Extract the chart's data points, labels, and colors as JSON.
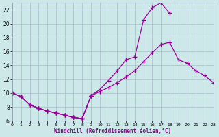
{
  "bg_color": "#cce8e8",
  "grid_color": "#aabbcc",
  "line_color": "#990099",
  "xlabel": "Windchill (Refroidissement éolien,°C)",
  "xlim": [
    0,
    23
  ],
  "ylim": [
    6,
    23
  ],
  "xticks": [
    0,
    1,
    2,
    3,
    4,
    5,
    6,
    7,
    8,
    9,
    10,
    11,
    12,
    13,
    14,
    15,
    16,
    17,
    18,
    19,
    20,
    21,
    22,
    23
  ],
  "yticks": [
    6,
    8,
    10,
    12,
    14,
    16,
    18,
    20,
    22
  ],
  "line1_x": [
    0,
    1,
    2,
    3,
    4,
    5,
    6,
    7,
    8,
    9
  ],
  "line1_y": [
    10.0,
    9.5,
    8.3,
    7.8,
    7.4,
    7.1,
    6.8,
    6.5,
    6.3,
    9.6
  ],
  "line2_x": [
    0,
    1,
    2,
    3,
    4,
    5,
    6,
    7,
    8,
    9,
    10,
    11,
    12,
    13,
    14,
    15,
    16,
    17,
    18,
    19,
    20,
    21,
    22,
    23
  ],
  "line2_y": [
    10.0,
    9.5,
    8.3,
    7.8,
    7.4,
    7.1,
    6.8,
    6.5,
    6.3,
    9.6,
    10.2,
    10.8,
    11.5,
    12.3,
    13.2,
    14.5,
    15.8,
    17.0,
    17.3,
    14.8,
    14.3,
    13.2,
    12.5,
    11.5
  ],
  "line3_x": [
    0,
    1,
    2,
    3,
    4,
    5,
    6,
    7,
    8,
    9,
    10,
    11,
    12,
    13,
    14,
    15,
    16,
    17,
    18
  ],
  "line3_y": [
    10.0,
    9.5,
    8.3,
    7.8,
    7.4,
    7.1,
    6.8,
    6.5,
    6.3,
    9.6,
    10.5,
    11.8,
    13.2,
    14.8,
    15.2,
    20.5,
    22.3,
    23.0,
    21.5
  ]
}
